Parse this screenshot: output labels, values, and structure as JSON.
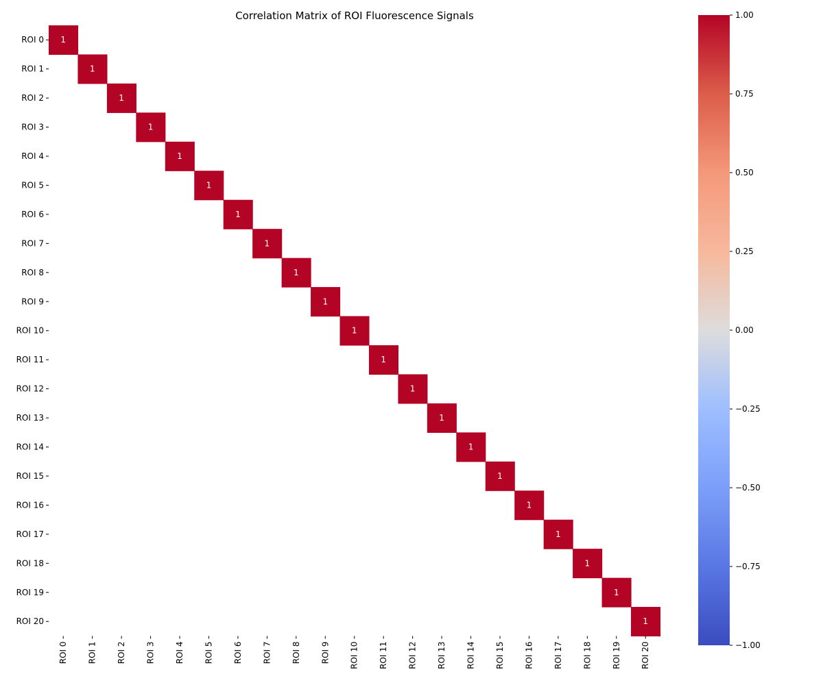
{
  "chart_data": {
    "type": "heatmap",
    "title": "Correlation Matrix of ROI Fluorescence Signals",
    "xlabel": "",
    "ylabel": "",
    "row_labels": [
      "ROI 0",
      "ROI 1",
      "ROI 2",
      "ROI 3",
      "ROI 4",
      "ROI 5",
      "ROI 6",
      "ROI 7",
      "ROI 8",
      "ROI 9",
      "ROI 10",
      "ROI 11",
      "ROI 12",
      "ROI 13",
      "ROI 14",
      "ROI 15",
      "ROI 16",
      "ROI 17",
      "ROI 18",
      "ROI 19",
      "ROI 20"
    ],
    "col_labels": [
      "ROI 0",
      "ROI 1",
      "ROI 2",
      "ROI 3",
      "ROI 4",
      "ROI 5",
      "ROI 6",
      "ROI 7",
      "ROI 8",
      "ROI 9",
      "ROI 10",
      "ROI 11",
      "ROI 12",
      "ROI 13",
      "ROI 14",
      "ROI 15",
      "ROI 16",
      "ROI 17",
      "ROI 18",
      "ROI 19",
      "ROI 20"
    ],
    "cells": [
      {
        "row": 0,
        "col": 0,
        "value": 1,
        "label": "1"
      },
      {
        "row": 1,
        "col": 1,
        "value": 1,
        "label": "1"
      },
      {
        "row": 2,
        "col": 2,
        "value": 1,
        "label": "1"
      },
      {
        "row": 3,
        "col": 3,
        "value": 1,
        "label": "1"
      },
      {
        "row": 4,
        "col": 4,
        "value": 1,
        "label": "1"
      },
      {
        "row": 5,
        "col": 5,
        "value": 1,
        "label": "1"
      },
      {
        "row": 6,
        "col": 6,
        "value": 1,
        "label": "1"
      },
      {
        "row": 7,
        "col": 7,
        "value": 1,
        "label": "1"
      },
      {
        "row": 8,
        "col": 8,
        "value": 1,
        "label": "1"
      },
      {
        "row": 9,
        "col": 9,
        "value": 1,
        "label": "1"
      },
      {
        "row": 10,
        "col": 10,
        "value": 1,
        "label": "1"
      },
      {
        "row": 11,
        "col": 11,
        "value": 1,
        "label": "1"
      },
      {
        "row": 12,
        "col": 12,
        "value": 1,
        "label": "1"
      },
      {
        "row": 13,
        "col": 13,
        "value": 1,
        "label": "1"
      },
      {
        "row": 14,
        "col": 14,
        "value": 1,
        "label": "1"
      },
      {
        "row": 15,
        "col": 15,
        "value": 1,
        "label": "1"
      },
      {
        "row": 16,
        "col": 16,
        "value": 1,
        "label": "1"
      },
      {
        "row": 17,
        "col": 17,
        "value": 1,
        "label": "1"
      },
      {
        "row": 18,
        "col": 18,
        "value": 1,
        "label": "1"
      },
      {
        "row": 19,
        "col": 19,
        "value": 1,
        "label": "1"
      },
      {
        "row": 20,
        "col": 20,
        "value": 1,
        "label": "1"
      }
    ],
    "colorbar": {
      "min": -1.0,
      "max": 1.0,
      "colormap": "coolwarm",
      "ticks": [
        {
          "value": 1.0,
          "label": "1.00"
        },
        {
          "value": 0.75,
          "label": "0.75"
        },
        {
          "value": 0.5,
          "label": "0.50"
        },
        {
          "value": 0.25,
          "label": "0.25"
        },
        {
          "value": 0.0,
          "label": "0.00"
        },
        {
          "value": -0.25,
          "label": "−0.25"
        },
        {
          "value": -0.5,
          "label": "−0.50"
        },
        {
          "value": -0.75,
          "label": "−0.75"
        },
        {
          "value": -1.0,
          "label": "−1.00"
        }
      ]
    },
    "colors": {
      "high": "#b40426",
      "mid": "#dddcdc",
      "low": "#3b4cc0",
      "cell_text": "#ffffff",
      "background": "#ffffff"
    },
    "grid": false,
    "legend": "colorbar-right"
  }
}
